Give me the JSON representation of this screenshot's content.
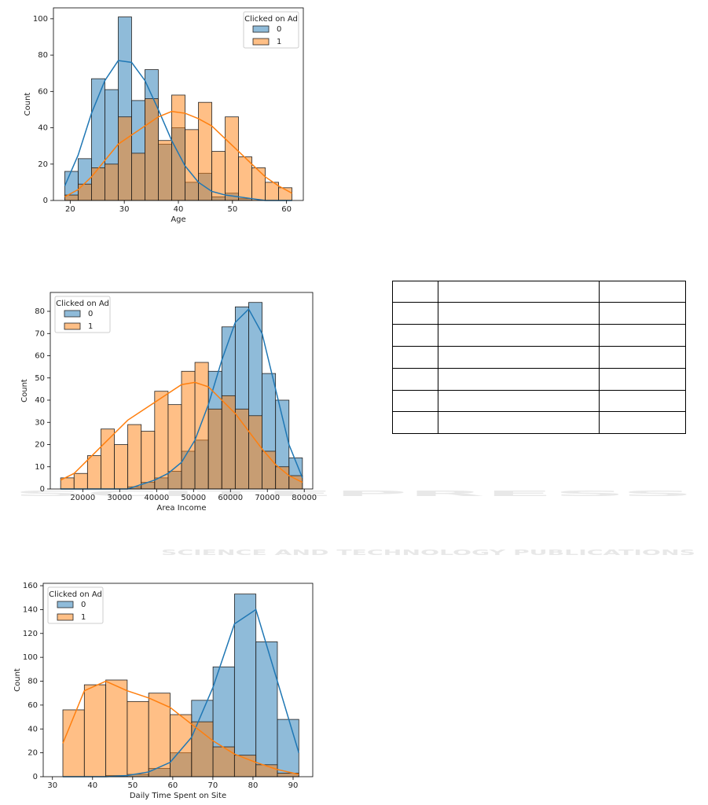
{
  "watermark": {
    "title": "SCITEPRESS",
    "subtitle": "SCIENCE AND TECHNOLOGY PUBLICATIONS"
  },
  "chart_data": [
    {
      "type": "histogram",
      "xlabel": "Age",
      "ylabel": "Count",
      "legend_title": "Clicked on Ad",
      "legend": "upper right",
      "bins": [
        19,
        21.47,
        23.94,
        26.41,
        28.88,
        31.35,
        33.82,
        36.29,
        38.76,
        41.24,
        43.71,
        46.18,
        48.65,
        51.12,
        53.59,
        56.06,
        58.53,
        61
      ],
      "series": [
        {
          "name": "0",
          "color": "#1f77b4",
          "values": [
            16,
            23,
            67,
            61,
            101,
            55,
            72,
            31,
            40,
            10,
            15,
            2,
            4,
            1,
            0,
            0,
            0
          ],
          "kde": [
            8,
            25,
            48,
            66,
            77,
            76,
            66,
            50,
            33,
            19,
            10,
            5,
            3,
            2,
            1,
            0,
            0,
            0
          ]
        },
        {
          "name": "1",
          "color": "#ff7f0e",
          "values": [
            3,
            9,
            18,
            20,
            46,
            26,
            56,
            33,
            58,
            39,
            54,
            27,
            46,
            24,
            18,
            10,
            7
          ],
          "kde": [
            2,
            6,
            13,
            22,
            31,
            36,
            41,
            46,
            49,
            48,
            45,
            41,
            34,
            27,
            20,
            13,
            8,
            4
          ]
        }
      ],
      "xlim": [
        16.9,
        63.1
      ],
      "ylim": [
        0,
        106
      ],
      "xticks": [
        20,
        30,
        40,
        50,
        60
      ],
      "yticks": [
        0,
        20,
        40,
        60,
        80,
        100
      ]
    },
    {
      "type": "histogram",
      "xlabel": "Area Income",
      "ylabel": "Count",
      "legend_title": "Clicked on Ad",
      "legend": "upper left",
      "bins": [
        14000,
        17638.9,
        21277.8,
        24916.7,
        28555.6,
        32194.4,
        35833.3,
        39472.2,
        43111.1,
        46750,
        50388.9,
        54027.8,
        57666.7,
        61305.6,
        64944.4,
        68583.3,
        72222.2,
        75861.1,
        79500
      ],
      "series": [
        {
          "name": "0",
          "color": "#1f77b4",
          "values": [
            0,
            0,
            0,
            0,
            0,
            1,
            3,
            5,
            8,
            17,
            22,
            53,
            73,
            82,
            84,
            52,
            40,
            14
          ],
          "kde": [
            0,
            0,
            0,
            0,
            0,
            0,
            2,
            4,
            7,
            12,
            22,
            38,
            58,
            75,
            81,
            70,
            45,
            20,
            5
          ]
        },
        {
          "name": "1",
          "color": "#ff7f0e",
          "values": [
            5,
            7,
            15,
            27,
            20,
            29,
            26,
            44,
            38,
            53,
            57,
            36,
            42,
            36,
            33,
            17,
            10,
            6
          ],
          "kde": [
            4,
            7,
            13,
            19,
            25,
            31,
            35,
            39,
            43,
            47,
            48,
            46,
            40,
            34,
            26,
            18,
            11,
            6,
            3
          ]
        }
      ],
      "xlim": [
        11200,
        82300
      ],
      "ylim": [
        0,
        88.5
      ],
      "xticks": [
        20000,
        30000,
        40000,
        50000,
        60000,
        70000,
        80000
      ],
      "yticks": [
        0,
        10,
        20,
        30,
        40,
        50,
        60,
        70,
        80
      ]
    },
    {
      "type": "histogram",
      "xlabel": "Daily Time Spent on Site",
      "ylabel": "Count",
      "legend_title": "Clicked on Ad",
      "legend": "upper left",
      "bins": [
        32.6,
        37.95,
        43.3,
        48.64,
        53.99,
        59.34,
        64.69,
        70.04,
        75.38,
        80.73,
        86.08,
        91.43
      ],
      "series": [
        {
          "name": "0",
          "color": "#1f77b4",
          "values": [
            0,
            0,
            1,
            2,
            7,
            20,
            64,
            92,
            153,
            113,
            48
          ],
          "kde": [
            0,
            0,
            0,
            1,
            4,
            12,
            33,
            75,
            128,
            140,
            80,
            20
          ]
        },
        {
          "name": "1",
          "color": "#ff7f0e",
          "values": [
            56,
            77,
            81,
            63,
            70,
            52,
            46,
            25,
            18,
            10,
            3
          ],
          "kde": [
            28,
            72,
            80,
            72,
            66,
            58,
            44,
            30,
            19,
            12,
            6,
            2
          ]
        }
      ],
      "xlim": [
        27.7,
        94.9
      ],
      "ylim": [
        0,
        162
      ],
      "xticks": [
        30,
        40,
        50,
        60,
        70,
        80,
        90
      ],
      "yticks": [
        0,
        20,
        40,
        60,
        80,
        100,
        120,
        140,
        160
      ]
    }
  ]
}
